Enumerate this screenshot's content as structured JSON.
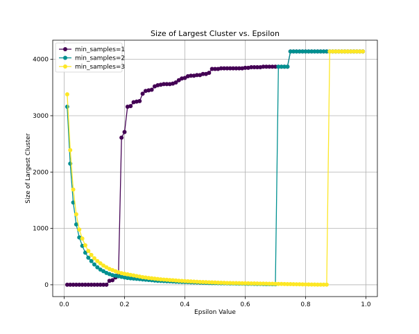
{
  "chart_data": {
    "type": "line",
    "title": "Size of Largest Cluster vs. Epsilon",
    "xlabel": "Epsilon Value",
    "ylabel": "Size of Largest Cluster",
    "xlim": [
      -0.038,
      1.038
    ],
    "ylim": [
      -210,
      4340
    ],
    "xticks": [
      0.0,
      0.2,
      0.4,
      0.6,
      0.8,
      1.0
    ],
    "xtick_labels": [
      "0.0",
      "0.2",
      "0.4",
      "0.6",
      "0.8",
      "1.0"
    ],
    "yticks": [
      0,
      1000,
      2000,
      3000,
      4000
    ],
    "ytick_labels": [
      "0",
      "1000",
      "2000",
      "3000",
      "4000"
    ],
    "grid": true,
    "legend_position": "top-left",
    "series": [
      {
        "name": "min_samples=1",
        "color": "#440154",
        "x": [
          0.01,
          0.02,
          0.03,
          0.04,
          0.05,
          0.06,
          0.07,
          0.08,
          0.09,
          0.1,
          0.11,
          0.12,
          0.13,
          0.14,
          0.15,
          0.16,
          0.17,
          0.18,
          0.19,
          0.2,
          0.21,
          0.22,
          0.23,
          0.24,
          0.25,
          0.26,
          0.27,
          0.28,
          0.29,
          0.3,
          0.31,
          0.32,
          0.33,
          0.34,
          0.35,
          0.36,
          0.37,
          0.38,
          0.39,
          0.4,
          0.41,
          0.42,
          0.43,
          0.44,
          0.45,
          0.46,
          0.47,
          0.48,
          0.49,
          0.5,
          0.51,
          0.52,
          0.53,
          0.54,
          0.55,
          0.56,
          0.57,
          0.58,
          0.59,
          0.6,
          0.61,
          0.62,
          0.63,
          0.64,
          0.65,
          0.66,
          0.67,
          0.68,
          0.69,
          0.7,
          0.71,
          0.72,
          0.73,
          0.74,
          0.75,
          0.76,
          0.77,
          0.78,
          0.79,
          0.8,
          0.81,
          0.82,
          0.83,
          0.84,
          0.85,
          0.86,
          0.87,
          0.88,
          0.89,
          0.9,
          0.91,
          0.92,
          0.93,
          0.94,
          0.95,
          0.96,
          0.97,
          0.98,
          0.99
        ],
        "y": [
          1,
          1,
          1,
          1,
          1,
          1,
          1,
          1,
          1,
          1,
          1,
          1,
          1,
          1,
          70,
          80,
          130,
          180,
          2610,
          2710,
          3160,
          3170,
          3240,
          3250,
          3260,
          3390,
          3440,
          3450,
          3460,
          3520,
          3540,
          3550,
          3560,
          3560,
          3560,
          3570,
          3590,
          3630,
          3660,
          3670,
          3700,
          3710,
          3710,
          3720,
          3720,
          3740,
          3740,
          3760,
          3830,
          3830,
          3830,
          3840,
          3840,
          3840,
          3840,
          3840,
          3840,
          3840,
          3840,
          3850,
          3850,
          3860,
          3860,
          3860,
          3860,
          3870,
          3870,
          3870,
          3870,
          3870,
          3870,
          3870,
          3870,
          3870,
          4140,
          4140,
          4140,
          4140,
          4140,
          4140,
          4140,
          4140,
          4140,
          4140,
          4140,
          4140,
          4140,
          4140,
          4140,
          4140,
          4140,
          4140,
          4140,
          4140,
          4140,
          4140,
          4140,
          4140,
          4140
        ]
      },
      {
        "name": "min_samples=2",
        "color": "#009090",
        "x": [
          0.01,
          0.02,
          0.03,
          0.04,
          0.05,
          0.06,
          0.07,
          0.08,
          0.09,
          0.1,
          0.11,
          0.12,
          0.13,
          0.14,
          0.15,
          0.16,
          0.17,
          0.18,
          0.19,
          0.2,
          0.21,
          0.22,
          0.23,
          0.24,
          0.25,
          0.26,
          0.27,
          0.28,
          0.29,
          0.3,
          0.31,
          0.32,
          0.33,
          0.34,
          0.35,
          0.36,
          0.37,
          0.38,
          0.39,
          0.4,
          0.41,
          0.42,
          0.43,
          0.44,
          0.45,
          0.46,
          0.47,
          0.48,
          0.49,
          0.5,
          0.51,
          0.52,
          0.53,
          0.54,
          0.55,
          0.56,
          0.57,
          0.58,
          0.59,
          0.6,
          0.61,
          0.62,
          0.63,
          0.64,
          0.65,
          0.66,
          0.67,
          0.68,
          0.69,
          0.7,
          0.71,
          0.72,
          0.73,
          0.74,
          0.75,
          0.76,
          0.77,
          0.78,
          0.79,
          0.8,
          0.81,
          0.82,
          0.83,
          0.84,
          0.85,
          0.86,
          0.87,
          0.88,
          0.89,
          0.9,
          0.91,
          0.92,
          0.93,
          0.94,
          0.95,
          0.96,
          0.97,
          0.98,
          0.99
        ],
        "y": [
          3160,
          2150,
          1460,
          1070,
          840,
          690,
          570,
          480,
          420,
          360,
          310,
          270,
          240,
          210,
          190,
          170,
          160,
          150,
          140,
          130,
          120,
          115,
          110,
          105,
          100,
          95,
          90,
          85,
          80,
          75,
          70,
          68,
          65,
          62,
          60,
          58,
          55,
          52,
          50,
          48,
          46,
          44,
          42,
          40,
          38,
          36,
          34,
          32,
          30,
          29,
          28,
          27,
          26,
          25,
          24,
          23,
          22,
          21,
          20,
          19,
          18,
          17,
          16,
          15,
          14,
          13,
          12,
          11,
          10,
          9,
          3870,
          3870,
          3870,
          3870,
          4140,
          4140,
          4140,
          4140,
          4140,
          4140,
          4140,
          4140,
          4140,
          4140,
          4140,
          4140,
          4140,
          4140,
          4140,
          4140,
          4140,
          4140,
          4140,
          4140,
          4140,
          4140,
          4140,
          4140,
          4140
        ]
      },
      {
        "name": "min_samples=3",
        "color": "#fde725",
        "x": [
          0.01,
          0.02,
          0.03,
          0.04,
          0.05,
          0.06,
          0.07,
          0.08,
          0.09,
          0.1,
          0.11,
          0.12,
          0.13,
          0.14,
          0.15,
          0.16,
          0.17,
          0.18,
          0.19,
          0.2,
          0.21,
          0.22,
          0.23,
          0.24,
          0.25,
          0.26,
          0.27,
          0.28,
          0.29,
          0.3,
          0.31,
          0.32,
          0.33,
          0.34,
          0.35,
          0.36,
          0.37,
          0.38,
          0.39,
          0.4,
          0.41,
          0.42,
          0.43,
          0.44,
          0.45,
          0.46,
          0.47,
          0.48,
          0.49,
          0.5,
          0.51,
          0.52,
          0.53,
          0.54,
          0.55,
          0.56,
          0.57,
          0.58,
          0.59,
          0.6,
          0.61,
          0.62,
          0.63,
          0.64,
          0.65,
          0.66,
          0.67,
          0.68,
          0.69,
          0.7,
          0.71,
          0.72,
          0.73,
          0.74,
          0.75,
          0.76,
          0.77,
          0.78,
          0.79,
          0.8,
          0.81,
          0.82,
          0.83,
          0.84,
          0.85,
          0.86,
          0.87,
          0.88,
          0.89,
          0.9,
          0.91,
          0.92,
          0.93,
          0.94,
          0.95,
          0.96,
          0.97,
          0.98,
          0.99
        ],
        "y": [
          3380,
          2390,
          1690,
          1250,
          980,
          820,
          700,
          600,
          530,
          470,
          420,
          380,
          340,
          310,
          280,
          260,
          240,
          220,
          205,
          195,
          185,
          175,
          165,
          155,
          145,
          135,
          128,
          120,
          114,
          108,
          102,
          96,
          92,
          88,
          84,
          80,
          76,
          72,
          68,
          65,
          62,
          59,
          56,
          53,
          50,
          48,
          46,
          44,
          42,
          40,
          38,
          36,
          34,
          32,
          31,
          30,
          29,
          28,
          27,
          26,
          25,
          24,
          23,
          22,
          21,
          20,
          19,
          18,
          17,
          16,
          15,
          14,
          13,
          12,
          11,
          10,
          9,
          8,
          7,
          6,
          5,
          4,
          3,
          2,
          2,
          2,
          2,
          4140,
          4140,
          4140,
          4140,
          4140,
          4140,
          4140,
          4140,
          4140,
          4140,
          4140,
          4140
        ]
      }
    ]
  }
}
